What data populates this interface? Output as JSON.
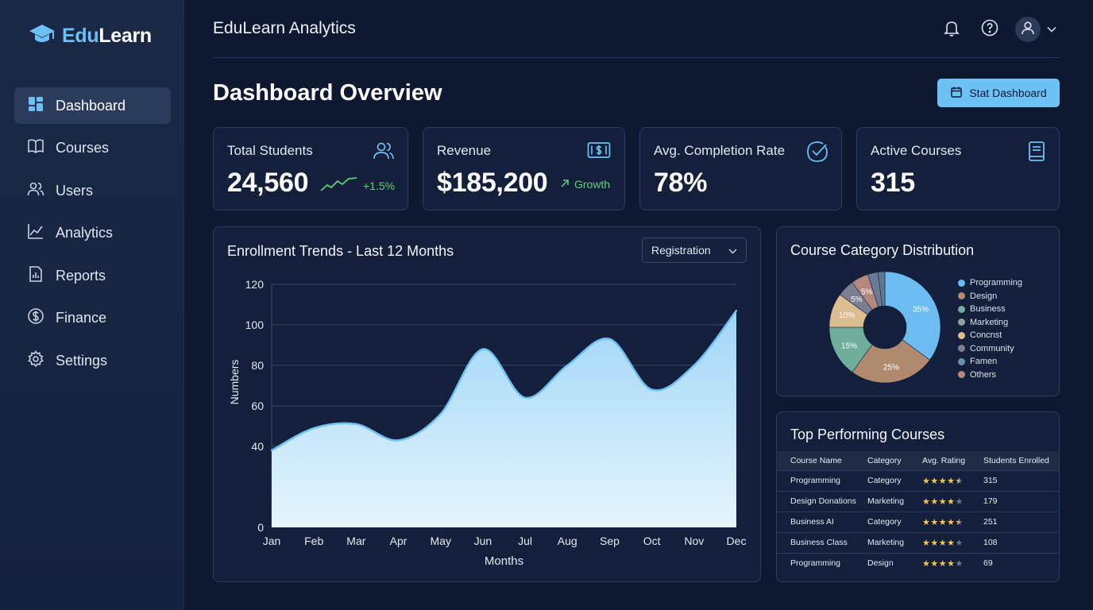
{
  "brand": {
    "prefix": "Edu",
    "suffix": "Learn"
  },
  "sidebar": {
    "items": [
      {
        "label": "Dashboard",
        "icon": "grid-icon",
        "active": true
      },
      {
        "label": "Courses",
        "icon": "book-icon"
      },
      {
        "label": "Users",
        "icon": "users-icon"
      },
      {
        "label": "Analytics",
        "icon": "line-chart-icon"
      },
      {
        "label": "Reports",
        "icon": "report-icon"
      },
      {
        "label": "Finance",
        "icon": "dollar-icon"
      },
      {
        "label": "Settings",
        "icon": "gear-icon"
      }
    ]
  },
  "header": {
    "title": "EduLearn Analytics"
  },
  "page": {
    "title": "Dashboard Overview",
    "action_label": "Stat Dashboard"
  },
  "kpis": [
    {
      "label": "Total Students",
      "value": "24,560",
      "trend": "+1.5%",
      "icon": "users-icon"
    },
    {
      "label": "Revenue",
      "value": "$185,200",
      "trend": "Growth",
      "icon": "money-icon"
    },
    {
      "label": "Avg. Completion Rate",
      "value": "78%",
      "icon": "check-circle-icon"
    },
    {
      "label": "Active Courses",
      "value": "315",
      "icon": "book-icon"
    }
  ],
  "enrollment": {
    "title": "Enrollment Trends - Last 12 Months",
    "filter": "Registration",
    "chart_data": {
      "type": "area",
      "title": "Enrollment Trends - Last 12 Months",
      "xlabel": "Months",
      "ylabel": "Numbers",
      "categories": [
        "Jan",
        "Feb",
        "Mar",
        "Apr",
        "May",
        "Jun",
        "Jul",
        "Aug",
        "Sep",
        "Oct",
        "Nov",
        "Dec"
      ],
      "values": [
        38,
        49,
        51,
        43,
        56,
        88,
        64,
        80,
        93,
        68,
        80,
        107
      ],
      "yticks": [
        0,
        40,
        60,
        80,
        100,
        120
      ],
      "ylim": [
        0,
        120
      ],
      "grid": true,
      "colors": {
        "fill_top": "#9fd6f7",
        "fill_bottom": "#e6f5fd",
        "line": "#6fc0f0"
      }
    }
  },
  "distribution": {
    "title": "Course Category Distribution",
    "chart_data": {
      "type": "pie",
      "title": "Course Category Distribution",
      "slices": [
        {
          "label": "Programming",
          "value": 35,
          "text": "35%",
          "color": "#6cbcf2"
        },
        {
          "label": "Design",
          "value": 25,
          "text": "25%",
          "color": "#b08a6e"
        },
        {
          "label": "Business",
          "value": 15,
          "text": "15%",
          "color": "#6fae9c"
        },
        {
          "label": "Concnst",
          "value": 10,
          "text": "10%",
          "color": "#dbbd8f"
        },
        {
          "label": "Marketing",
          "value": 5,
          "text": "5%",
          "color": "#7b7f94"
        },
        {
          "label": "Others",
          "value": 5,
          "text": "5%",
          "color": "#b4887e"
        },
        {
          "label": "Community",
          "value": 3,
          "text": "",
          "color": "#6b7a94"
        },
        {
          "label": "Famen",
          "value": 2,
          "text": "",
          "color": "#5f7894"
        }
      ],
      "legend": [
        {
          "label": "Programming",
          "color": "#6cbcf2"
        },
        {
          "label": "Design",
          "color": "#b08a6e"
        },
        {
          "label": "Business",
          "color": "#6fae9c"
        },
        {
          "label": "Marketing",
          "color": "#8fa09a"
        },
        {
          "label": "Concnst",
          "color": "#dbbd8f"
        },
        {
          "label": "Community",
          "color": "#7b7f94"
        },
        {
          "label": "Famen",
          "color": "#6b8fb5"
        },
        {
          "label": "Others",
          "color": "#b4887e"
        }
      ],
      "legend_position": "right"
    }
  },
  "top_courses": {
    "title": "Top Performing Courses",
    "columns": [
      "Course Name",
      "Category",
      "Avg. Rating",
      "Students Enrolled"
    ],
    "rows": [
      {
        "name": "Programming",
        "category": "Category",
        "rating": 4.5,
        "students": "315"
      },
      {
        "name": "Design Donations",
        "category": "Marketing",
        "rating": 4,
        "students": "179"
      },
      {
        "name": "Business AI",
        "category": "Category",
        "rating": 4.5,
        "students": "251"
      },
      {
        "name": "Business Class",
        "category": "Marketing",
        "rating": 4,
        "students": "108"
      },
      {
        "name": "Programming",
        "category": "Design",
        "rating": 4,
        "students": "69"
      }
    ]
  }
}
